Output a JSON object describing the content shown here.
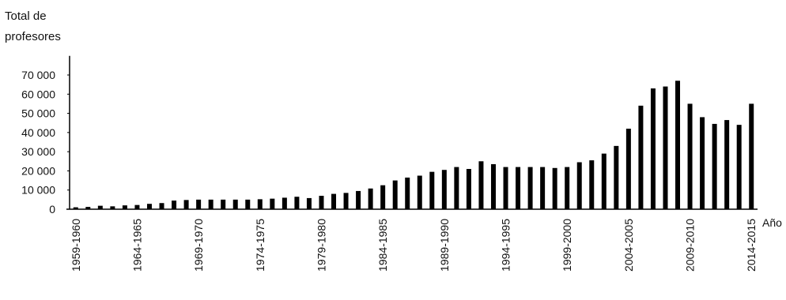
{
  "chart_data": {
    "type": "bar",
    "y_label": "Total de profesores",
    "x_label": "Año",
    "categories": [
      "1959-1960",
      null,
      null,
      null,
      null,
      "1964-1965",
      null,
      null,
      null,
      null,
      "1969-1970",
      null,
      null,
      null,
      null,
      "1974-1975",
      null,
      null,
      null,
      null,
      "1979-1980",
      null,
      null,
      null,
      null,
      "1984-1985",
      null,
      null,
      null,
      null,
      "1989-1990",
      null,
      null,
      null,
      null,
      "1994-1995",
      null,
      null,
      null,
      null,
      "1999-2000",
      null,
      null,
      null,
      null,
      "2004-2005",
      null,
      null,
      null,
      null,
      "2009-2010",
      null,
      null,
      null,
      null,
      "2014-2015"
    ],
    "values": [
      1000,
      1200,
      1800,
      1500,
      2000,
      2200,
      2800,
      3200,
      4500,
      4800,
      5000,
      5000,
      5000,
      5000,
      5000,
      5200,
      5500,
      6000,
      6500,
      5800,
      7000,
      8000,
      8500,
      9500,
      10800,
      12500,
      15000,
      16500,
      17500,
      19500,
      20500,
      22000,
      21000,
      25000,
      23500,
      22000,
      22000,
      22000,
      22000,
      21500,
      22000,
      24500,
      25500,
      29000,
      33000,
      42000,
      54000,
      63000,
      64000,
      67000,
      55000,
      48000,
      44500,
      46500,
      44000,
      55000
    ],
    "color": "#000000",
    "ylim": [
      0,
      80000
    ],
    "yticks": [
      0,
      {
        "value": 10000,
        "label": "10 000"
      },
      {
        "value": 20000,
        "label": "20 000"
      },
      {
        "value": 30000,
        "label": "30 000"
      },
      {
        "value": 40000,
        "label": "40 000"
      },
      {
        "value": 50000,
        "label": "50 000"
      },
      {
        "value": 60000,
        "label": "60 000"
      },
      {
        "value": 70000,
        "label": "70 000"
      }
    ],
    "grid": false
  }
}
